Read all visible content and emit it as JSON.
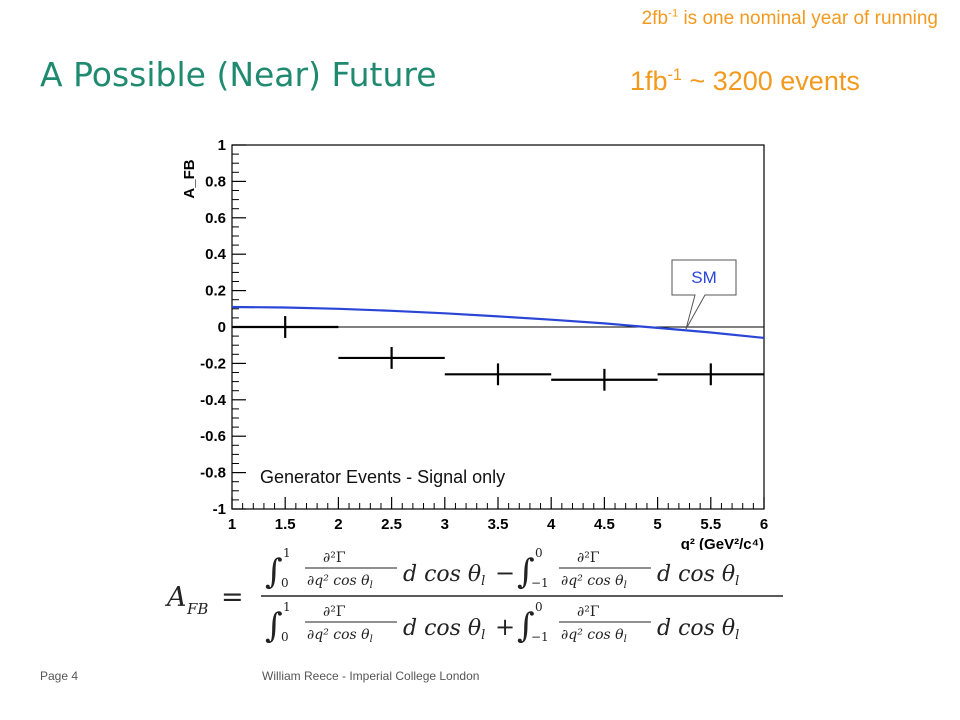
{
  "slide": {
    "title": "A Possible (Near) Future",
    "note_top_pre": "2fb",
    "note_top_sup": "-1",
    "note_top_post": " is one nominal year of running",
    "events_pre": "1fb",
    "events_sup": "-1",
    "events_post": " ~ 3200 events",
    "footer_page": "Page 4",
    "footer_author": "William Reece - Imperial College London"
  },
  "colors": {
    "title": "#1f8a70",
    "orange": "#f39a1e",
    "sm_curve": "#2a46d6",
    "data": "#000000"
  },
  "chart_data": {
    "type": "scatter",
    "xlabel": "q² (GeV²/c⁴)",
    "ylabel": "A_FB",
    "xlim": [
      1,
      6
    ],
    "ylim": [
      -1,
      1
    ],
    "x_ticks": [
      "1",
      "1.5",
      "2",
      "2.5",
      "3",
      "3.5",
      "4",
      "4.5",
      "5",
      "5.5",
      "6"
    ],
    "y_ticks": [
      "-1",
      "-0.8",
      "-0.6",
      "-0.4",
      "-0.2",
      "0",
      "0.2",
      "0.4",
      "0.6",
      "0.8",
      "1"
    ],
    "annotation": "Generator Events - Signal only",
    "sm_label": "SM",
    "points": [
      {
        "x": 1.5,
        "y": 0.0,
        "xerr": 0.5,
        "yerr": 0.06
      },
      {
        "x": 2.5,
        "y": -0.17,
        "xerr": 0.5,
        "yerr": 0.06
      },
      {
        "x": 3.5,
        "y": -0.26,
        "xerr": 0.5,
        "yerr": 0.06
      },
      {
        "x": 4.5,
        "y": -0.29,
        "xerr": 0.5,
        "yerr": 0.06
      },
      {
        "x": 5.5,
        "y": -0.26,
        "xerr": 0.5,
        "yerr": 0.06
      }
    ],
    "sm_curve": {
      "x": [
        1,
        1.5,
        2,
        2.5,
        3,
        3.5,
        4,
        4.5,
        5,
        5.5,
        6
      ],
      "y": [
        0.11,
        0.107,
        0.1,
        0.089,
        0.075,
        0.058,
        0.04,
        0.02,
        -0.005,
        -0.03,
        -0.06
      ]
    }
  }
}
